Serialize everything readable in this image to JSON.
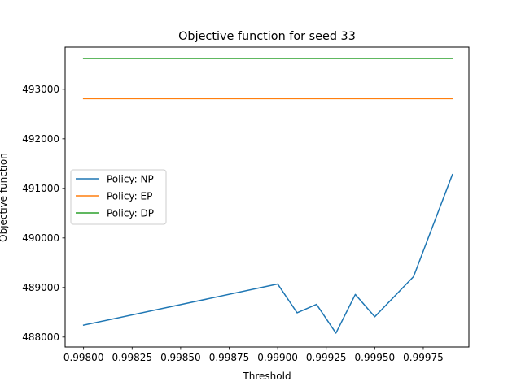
{
  "chart_data": {
    "type": "line",
    "title": "Objective function for seed 33",
    "xlabel": "Threshold",
    "ylabel": "Objective function",
    "xlim": [
      0.997905,
      0.999985
    ],
    "ylim": [
      487800,
      493850
    ],
    "x_ticks": [
      0.998,
      0.99825,
      0.9985,
      0.99875,
      0.999,
      0.99925,
      0.9995,
      0.99975
    ],
    "x_tick_labels": [
      "0.99800",
      "0.99825",
      "0.99850",
      "0.99875",
      "0.99900",
      "0.99925",
      "0.99950",
      "0.99975"
    ],
    "y_ticks": [
      488000,
      489000,
      490000,
      491000,
      492000,
      493000
    ],
    "y_tick_labels": [
      "488000",
      "489000",
      "490000",
      "491000",
      "492000",
      "493000"
    ],
    "grid": false,
    "legend_position": "center-left",
    "series": [
      {
        "name": "Policy: NP",
        "color": "#1f77b4",
        "x": [
          0.998,
          0.999,
          0.9991,
          0.9992,
          0.9993,
          0.9994,
          0.9995,
          0.9997,
          0.9999
        ],
        "y": [
          488240,
          489070,
          488490,
          488660,
          488080,
          488860,
          488410,
          489220,
          491280
        ]
      },
      {
        "name": "Policy: EP",
        "color": "#ff7f0e",
        "x": [
          0.998,
          0.9999
        ],
        "y": [
          492810,
          492810
        ]
      },
      {
        "name": "Policy: DP",
        "color": "#2ca02c",
        "x": [
          0.998,
          0.9999
        ],
        "y": [
          493620,
          493620
        ]
      }
    ]
  }
}
